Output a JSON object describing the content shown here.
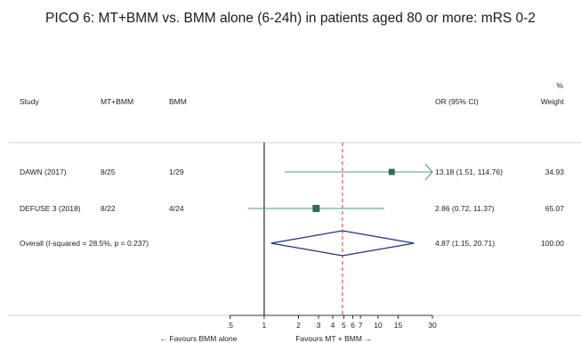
{
  "title": "PICO 6: MT+BMM vs. BMM alone (6-24h) in patients aged 80 or more: mRS 0-2",
  "headers": {
    "study": "Study",
    "treat": "MT+BMM",
    "control": "BMM",
    "effect": "OR (95% CI)",
    "weight_unit": "%",
    "weight": "Weight"
  },
  "chart_data": {
    "type": "forest",
    "scale": "log",
    "xlim": [
      0.3,
      30
    ],
    "null_value": 1,
    "pooled_line": 4.87,
    "x_ticks": [
      {
        "value": 0.5,
        "label": ".5"
      },
      {
        "value": 1,
        "label": "1"
      },
      {
        "value": 2,
        "label": "2"
      },
      {
        "value": 3,
        "label": "3"
      },
      {
        "value": 4,
        "label": "4"
      },
      {
        "value": 5,
        "label": "5"
      },
      {
        "value": 6,
        "label": "6"
      },
      {
        "value": 7,
        "label": "7"
      },
      {
        "value": 10,
        "label": "10"
      },
      {
        "value": 15,
        "label": "15"
      },
      {
        "value": 30,
        "label": "30"
      }
    ],
    "axis_left_label": "← Favours BMM alone",
    "axis_right_label": "Favours MT + BMM →",
    "studies": [
      {
        "name": "DAWN (2017)",
        "treat": "8/25",
        "control": "1/29",
        "or": 13.18,
        "lo": 1.51,
        "hi": 114.76,
        "ci_text": "13.18 (1.51, 114.76)",
        "weight": "34.93",
        "weight_value": 34.93,
        "arrow_right": true
      },
      {
        "name": "DEFUSE 3 (2018)",
        "treat": "8/22",
        "control": "4/24",
        "or": 2.86,
        "lo": 0.72,
        "hi": 11.37,
        "ci_text": "2.86 (0.72, 11.37)",
        "weight": "65.07",
        "weight_value": 65.07,
        "arrow_right": false
      }
    ],
    "overall": {
      "name": "Overall  (I-squared = 28.5%, p = 0.237)",
      "or": 4.87,
      "lo": 1.15,
      "hi": 20.71,
      "ci_text": "4.87 (1.15, 20.71)",
      "weight": "100.00"
    },
    "colors": {
      "marker": "#2e6b58",
      "ci_line": "#4f9a8a",
      "null_line": "#000000",
      "pooled_line": "#c0392b",
      "diamond": "#1f2f8a",
      "rule": "#bdbdbd"
    }
  }
}
